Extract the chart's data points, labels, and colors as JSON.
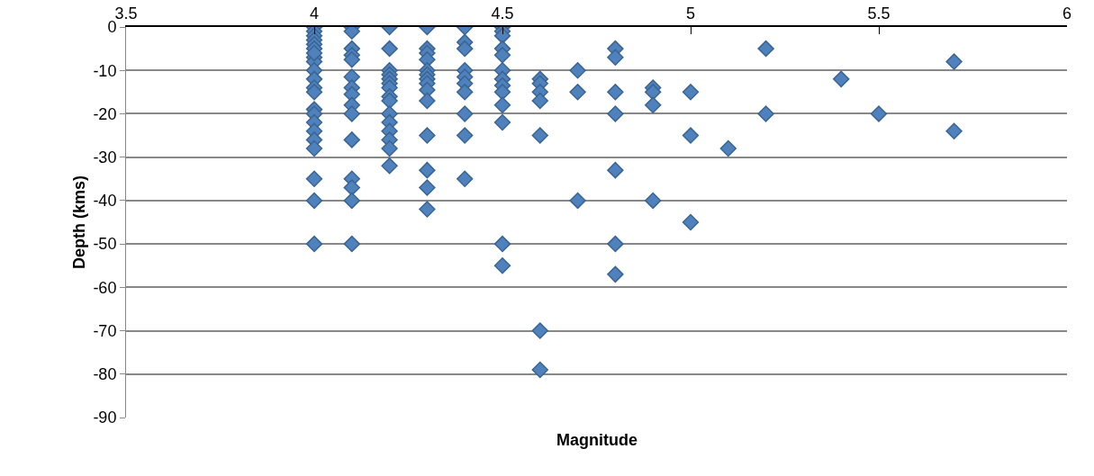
{
  "chart_data": {
    "type": "scatter",
    "xlabel": "Magnitude",
    "ylabel": "Depth (kms)",
    "x": [
      4,
      4,
      4,
      4,
      4,
      4,
      4,
      4,
      4,
      4,
      4,
      4,
      4,
      4,
      4,
      4,
      4,
      4,
      4,
      4,
      4,
      4,
      4.1,
      4.1,
      4.1,
      4.1,
      4.1,
      4.1,
      4.1,
      4.1,
      4.1,
      4.1,
      4.1,
      4.1,
      4.1,
      4.1,
      4.1,
      4.2,
      4.2,
      4.2,
      4.2,
      4.2,
      4.2,
      4.2,
      4.2,
      4.2,
      4.2,
      4.2,
      4.2,
      4.2,
      4.2,
      4.2,
      4.3,
      4.3,
      4.3,
      4.3,
      4.3,
      4.3,
      4.3,
      4.3,
      4.3,
      4.3,
      4.3,
      4.3,
      4.3,
      4.3,
      4.4,
      4.4,
      4.4,
      4.4,
      4.4,
      4.4,
      4.4,
      4.4,
      4.4,
      4.4,
      4.5,
      4.5,
      4.5,
      4.5,
      4.5,
      4.5,
      4.5,
      4.5,
      4.5,
      4.5,
      4.5,
      4.5,
      4.5,
      4.6,
      4.6,
      4.6,
      4.6,
      4.6,
      4.6,
      4.6,
      4.7,
      4.7,
      4.7,
      4.8,
      4.8,
      4.8,
      4.8,
      4.8,
      4.8,
      4.8,
      4.9,
      4.9,
      4.9,
      4.9,
      5,
      5,
      5,
      5.1,
      5.2,
      5.2,
      5.4,
      5.5,
      5.7,
      5.7
    ],
    "values": [
      0,
      -1,
      -2,
      -3,
      -4,
      -5,
      -7,
      -8,
      -10,
      -12,
      -14,
      -15,
      -19,
      -20,
      -22,
      -24,
      -26,
      -28,
      -35,
      -40,
      -50,
      -6,
      0,
      -1,
      -5,
      -6.5,
      -7.5,
      -11.5,
      -14,
      -15.5,
      -18,
      -20,
      -26,
      -35,
      -37,
      -40,
      -50,
      0,
      -5,
      -10,
      -11,
      -12,
      -13,
      -14,
      -16,
      -17,
      -20,
      -22,
      -24,
      -26,
      -28,
      -32,
      0,
      -5,
      -6,
      -7.5,
      -10,
      -11,
      -12,
      -13,
      -14.5,
      -17,
      -25,
      -33,
      -37,
      -42,
      0,
      -3.5,
      -5,
      -10,
      -11.5,
      -13,
      -15,
      -20,
      -25,
      -35,
      0,
      -1,
      -2,
      -5,
      -6.5,
      -10,
      -12,
      -13.5,
      -15,
      -18,
      -22,
      -50,
      -55,
      -12,
      -13,
      -15,
      -17,
      -25,
      -70,
      -79,
      -10,
      -15,
      -40,
      -5,
      -7,
      -15,
      -20,
      -33,
      -50,
      -57,
      -14,
      -15,
      -18,
      -40,
      -15,
      -25,
      -45,
      -28,
      -5,
      -20,
      -12,
      -20,
      -8,
      -24
    ],
    "color": "#4f81bd",
    "marker": "diamond",
    "grid": "y",
    "xlim": [
      3.5,
      6
    ],
    "xticks": [
      3.5,
      4,
      4.5,
      5,
      5.5,
      6
    ],
    "ylim": [
      -90,
      0
    ],
    "yticks": [
      0,
      -10,
      -20,
      -30,
      -40,
      -50,
      -60,
      -70,
      -80,
      -90
    ]
  }
}
